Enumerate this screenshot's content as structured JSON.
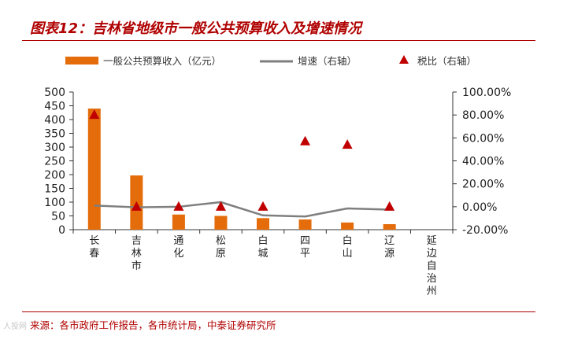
{
  "title": "图表12：吉林省地级市一般公共预算收入及增速情况",
  "source": "来源：各市政府工作报告，各市统计局，中泰证券研究所",
  "watermark": "人投网",
  "colors": {
    "bar": "#e46c0a",
    "growth_line": "#7f7f7f",
    "tax_ratio_marker": "#c00000",
    "accent": "#b00000"
  },
  "chart_data": {
    "type": "bar",
    "categories": [
      "长春",
      "吉林市",
      "通化",
      "松原",
      "白城",
      "四平",
      "白山",
      "辽源",
      "延边自治州"
    ],
    "y_left": {
      "ticks": [
        "0",
        "50",
        "100",
        "150",
        "200",
        "250",
        "300",
        "350",
        "400",
        "450",
        "500"
      ],
      "ylim": [
        0,
        500
      ]
    },
    "y_right": {
      "ticks": [
        "-20.00%",
        "0.00%",
        "20.00%",
        "40.00%",
        "60.00%",
        "80.00%",
        "100.00%"
      ],
      "ylim": [
        -20,
        100
      ]
    },
    "series": [
      {
        "name": "一般公共预算收入（亿元）",
        "type": "bar",
        "axis": "left",
        "values": [
          440,
          197,
          55,
          50,
          42,
          37,
          26,
          20,
          null
        ]
      },
      {
        "name": "增速（右轴）",
        "type": "line",
        "axis": "right",
        "values": [
          1.0,
          -0.5,
          0,
          4.0,
          -7.5,
          -8.5,
          -1.5,
          -2.5,
          null
        ]
      },
      {
        "name": "税比（右轴）",
        "type": "marker",
        "axis": "right",
        "values": [
          80,
          0,
          0,
          0,
          0,
          57,
          54,
          0,
          null
        ]
      }
    ]
  }
}
